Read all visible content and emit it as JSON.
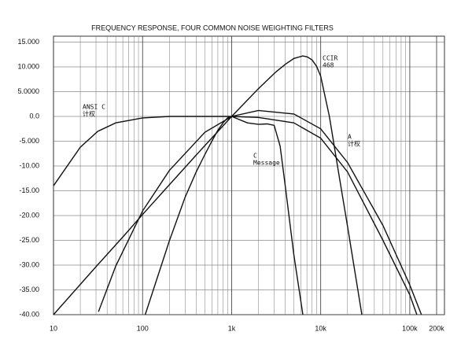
{
  "chart_data": {
    "type": "line",
    "title": "FREQUENCY RESPONSE, FOUR COMMON NOISE WEIGHTING FILTERS",
    "log_x": true,
    "grid": true,
    "xlim": [
      10,
      200000
    ],
    "ylim": [
      -40,
      15
    ],
    "xticks": [
      10,
      100,
      {
        "value": 1000,
        "label": "1k"
      },
      {
        "value": 10000,
        "label": "10k"
      },
      {
        "value": 100000,
        "label": "100k"
      },
      {
        "value": 200000,
        "label": "200k"
      }
    ],
    "xminorticks": [
      20,
      30,
      40,
      50,
      60,
      70,
      80,
      90,
      200,
      300,
      400,
      500,
      600,
      700,
      800,
      900,
      2000,
      3000,
      4000,
      5000,
      6000,
      7000,
      8000,
      9000,
      20000,
      30000,
      40000,
      50000,
      60000,
      70000,
      80000,
      90000
    ],
    "yticks": [
      {
        "value": 15,
        "label": "15.000"
      },
      {
        "value": 10,
        "label": "10.000"
      },
      {
        "value": 5,
        "label": "5.0000"
      },
      {
        "value": 0,
        "label": "0.0"
      },
      {
        "value": -5,
        "label": "-5.000"
      },
      {
        "value": -10,
        "label": "-10.00"
      },
      {
        "value": -15,
        "label": "-15.00"
      },
      {
        "value": -20,
        "label": "-20.00"
      },
      {
        "value": -25,
        "label": "-25.00"
      },
      {
        "value": -30,
        "label": "-30.00"
      },
      {
        "value": -35,
        "label": "-35.00"
      },
      {
        "value": -40,
        "label": "-40.00"
      }
    ],
    "series": [
      {
        "label": [
          "ANSI C",
          "计权"
        ],
        "color": "#111111",
        "x": [
          10,
          20,
          31.5,
          50,
          100,
          200,
          1000,
          2000,
          5000,
          10000,
          20000,
          50000,
          100000,
          120000
        ],
        "values": [
          -14,
          -6.2,
          -3,
          -1.3,
          -0.3,
          0,
          0,
          -0.2,
          -1.3,
          -4.4,
          -11.2,
          -25,
          -36,
          -40
        ]
      },
      {
        "label": [
          "CCIR",
          "468"
        ],
        "color": "#111111",
        "x": [
          10,
          31.5,
          63,
          100,
          200,
          400,
          800,
          1000,
          2000,
          3150,
          4000,
          5000,
          6300,
          7100,
          8000,
          9000,
          10000,
          12500,
          14000,
          16000,
          20000,
          29000
        ],
        "values": [
          -40,
          -29.9,
          -23.9,
          -19.8,
          -13.8,
          -7.8,
          -1.9,
          0,
          5.6,
          9,
          10.5,
          11.7,
          12.2,
          12,
          11.4,
          10.1,
          8.1,
          0,
          -5.3,
          -11.7,
          -22.2,
          -40
        ]
      },
      {
        "label": [
          "C",
          "Message"
        ],
        "color": "#111111",
        "x": [
          107,
          200,
          300,
          400,
          500,
          600,
          700,
          800,
          900,
          1000,
          1500,
          2000,
          2500,
          3000,
          3500,
          4000,
          5000,
          6300
        ],
        "values": [
          -40,
          -25.1,
          -16.3,
          -11.2,
          -7.7,
          -5,
          -2.8,
          -1.3,
          -0.3,
          0,
          -1.3,
          -1.6,
          -1.5,
          -1.8,
          -6,
          -14,
          -28,
          -40
        ]
      },
      {
        "label": [
          "A",
          "计权"
        ],
        "color": "#111111",
        "x": [
          32,
          50,
          100,
          200,
          500,
          1000,
          2000,
          5000,
          10000,
          20000,
          50000,
          100000,
          135000
        ],
        "values": [
          -39.4,
          -30.2,
          -19.1,
          -10.9,
          -3.2,
          0,
          1.2,
          0.5,
          -2.5,
          -9.3,
          -22,
          -34,
          -40
        ]
      }
    ]
  }
}
